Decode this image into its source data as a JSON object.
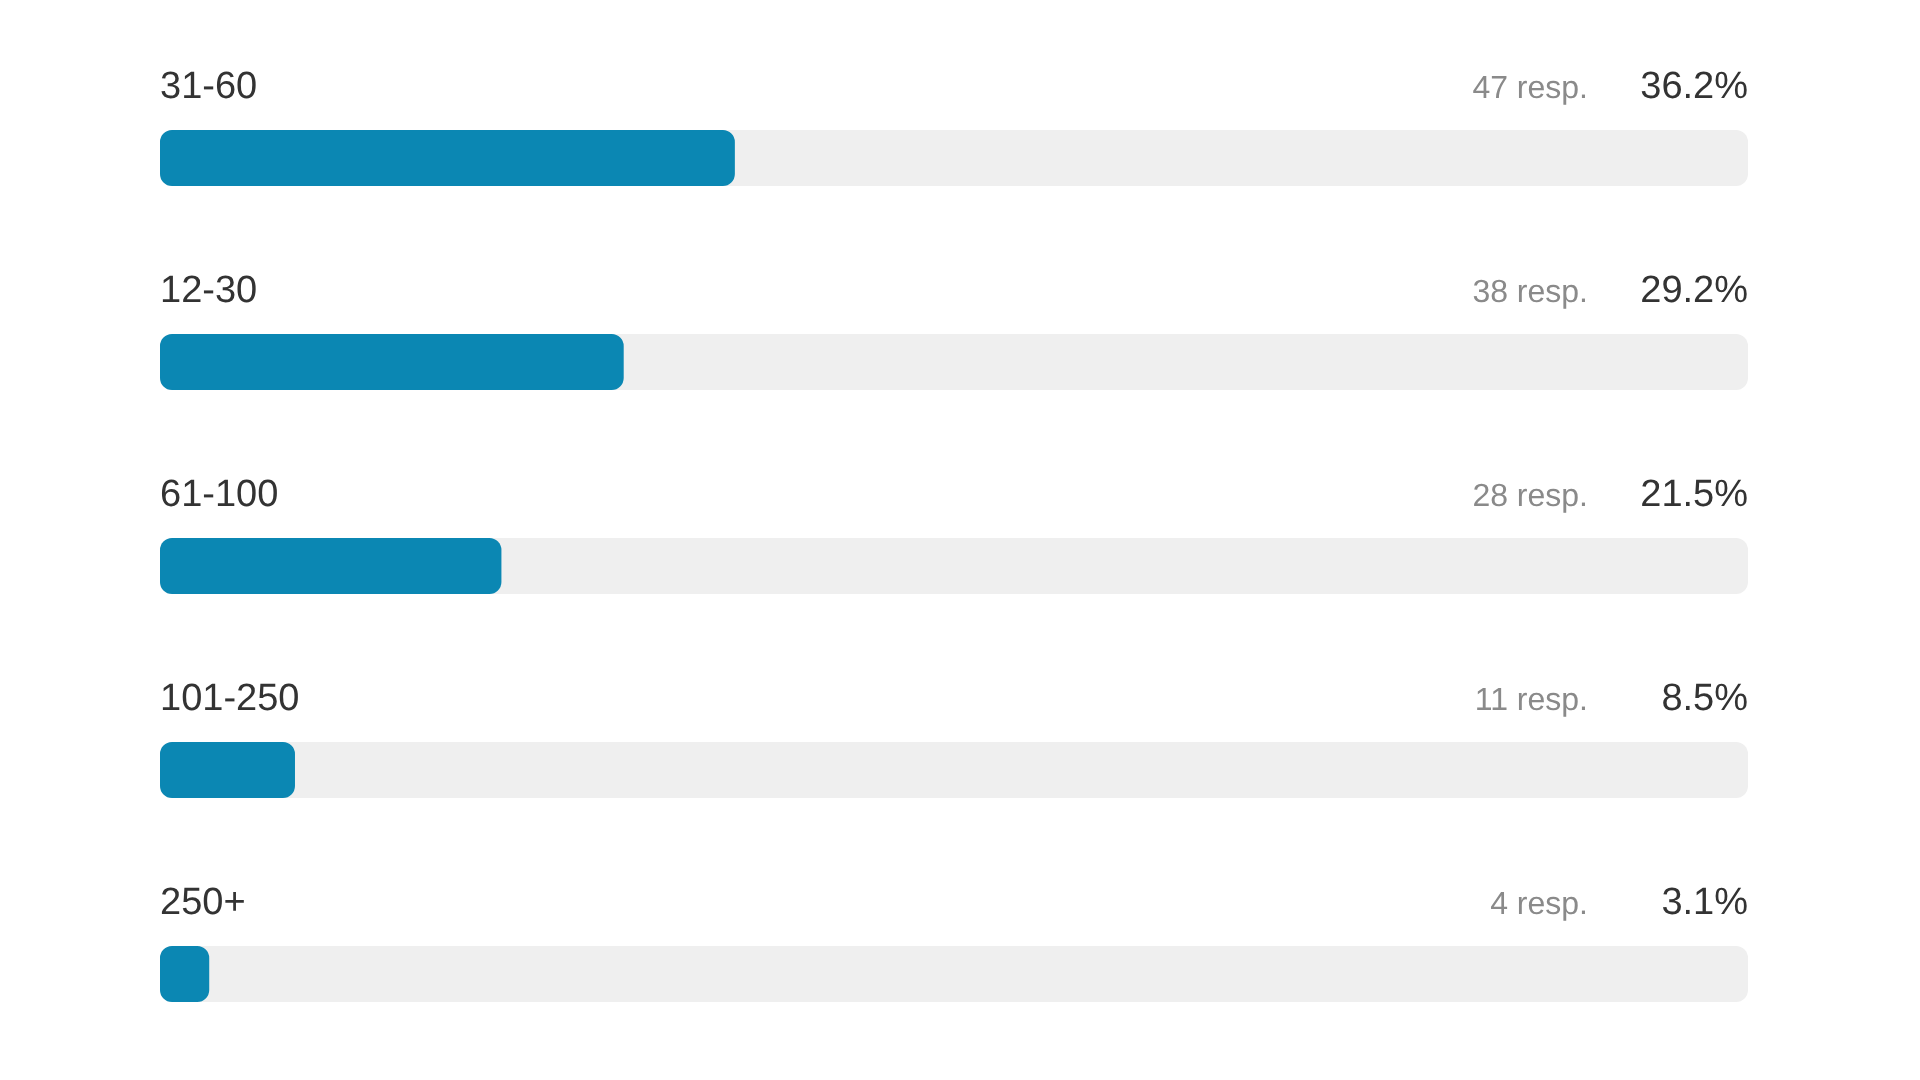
{
  "chart_data": {
    "type": "bar",
    "orientation": "horizontal",
    "categories": [
      "31-60",
      "12-30",
      "61-100",
      "101-250",
      "250+"
    ],
    "values": [
      36.2,
      29.2,
      21.5,
      8.5,
      3.1
    ],
    "value_labels": [
      "36.2%",
      "29.2%",
      "21.5%",
      "8.5%",
      "3.1%"
    ],
    "color": "#0b87b3",
    "xlim": [
      0,
      100
    ],
    "tick_labels": "y",
    "annotations": [
      "47 resp.",
      "38 resp.",
      "28 resp.",
      "11 resp.",
      "4 resp."
    ]
  }
}
